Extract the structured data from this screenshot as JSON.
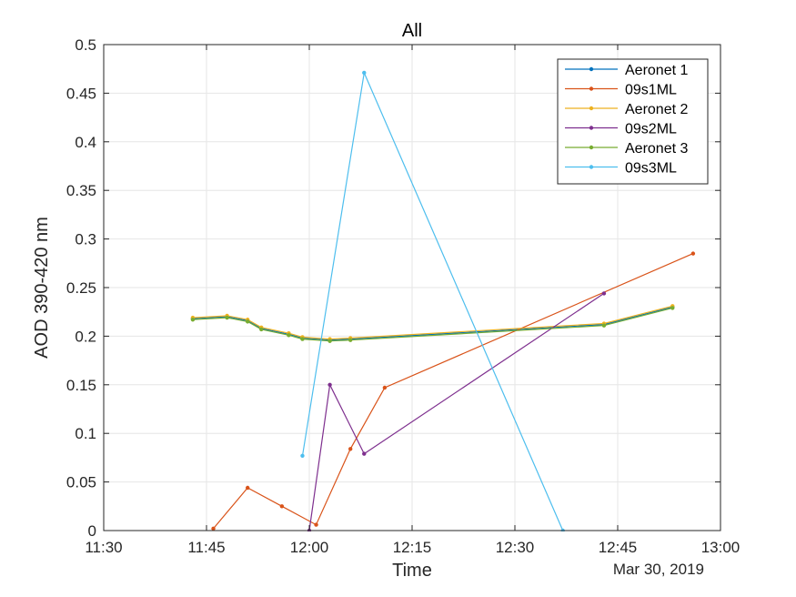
{
  "chart_data": {
    "type": "line",
    "title": "All",
    "xlabel": "Time",
    "ylabel": "AOD 390-420 nm",
    "date_label": "Mar 30, 2019",
    "xlim": [
      "11:30",
      "13:00"
    ],
    "ylim": [
      0,
      0.5
    ],
    "x_ticks": [
      "11:30",
      "11:45",
      "12:00",
      "12:15",
      "12:30",
      "12:45",
      "13:00"
    ],
    "y_ticks": [
      "0",
      "0.05",
      "0.1",
      "0.15",
      "0.2",
      "0.25",
      "0.3",
      "0.35",
      "0.4",
      "0.45",
      "0.5"
    ],
    "grid": true,
    "legend_position": "top-right",
    "series": [
      {
        "name": "Aeronet 1",
        "color": "#0072BD",
        "x": [
          "11:43",
          "11:48",
          "11:51",
          "11:53",
          "11:57",
          "11:59",
          "12:03",
          "12:06",
          "12:43",
          "12:53"
        ],
        "y": [
          0.218,
          0.22,
          0.216,
          0.208,
          0.202,
          0.198,
          0.196,
          0.197,
          0.212,
          0.23
        ]
      },
      {
        "name": "09s1ML",
        "color": "#D95319",
        "x": [
          "11:46",
          "11:51",
          "11:56",
          "12:01",
          "12:06",
          "12:11",
          "12:56"
        ],
        "y": [
          0.002,
          0.044,
          0.025,
          0.006,
          0.084,
          0.147,
          0.285
        ]
      },
      {
        "name": "Aeronet 2",
        "color": "#EDB120",
        "x": [
          "11:43",
          "11:48",
          "11:51",
          "11:53",
          "11:57",
          "11:59",
          "12:03",
          "12:06",
          "12:43",
          "12:53"
        ],
        "y": [
          0.219,
          0.221,
          0.217,
          0.209,
          0.203,
          0.199,
          0.197,
          0.198,
          0.213,
          0.231
        ]
      },
      {
        "name": "09s2ML",
        "color": "#7E2F8E",
        "x": [
          "12:00",
          "12:03",
          "12:08",
          "12:43"
        ],
        "y": [
          0.0,
          0.15,
          0.079,
          0.244
        ]
      },
      {
        "name": "Aeronet 3",
        "color": "#77AC30",
        "x": [
          "11:43",
          "11:48",
          "11:51",
          "11:53",
          "11:57",
          "11:59",
          "12:03",
          "12:06",
          "12:43",
          "12:53"
        ],
        "y": [
          0.217,
          0.219,
          0.215,
          0.207,
          0.201,
          0.197,
          0.195,
          0.196,
          0.211,
          0.229
        ]
      },
      {
        "name": "09s3ML",
        "color": "#4DBEEE",
        "x": [
          "11:59",
          "12:08",
          "12:37"
        ],
        "y": [
          0.077,
          0.471,
          0.0
        ]
      }
    ]
  }
}
